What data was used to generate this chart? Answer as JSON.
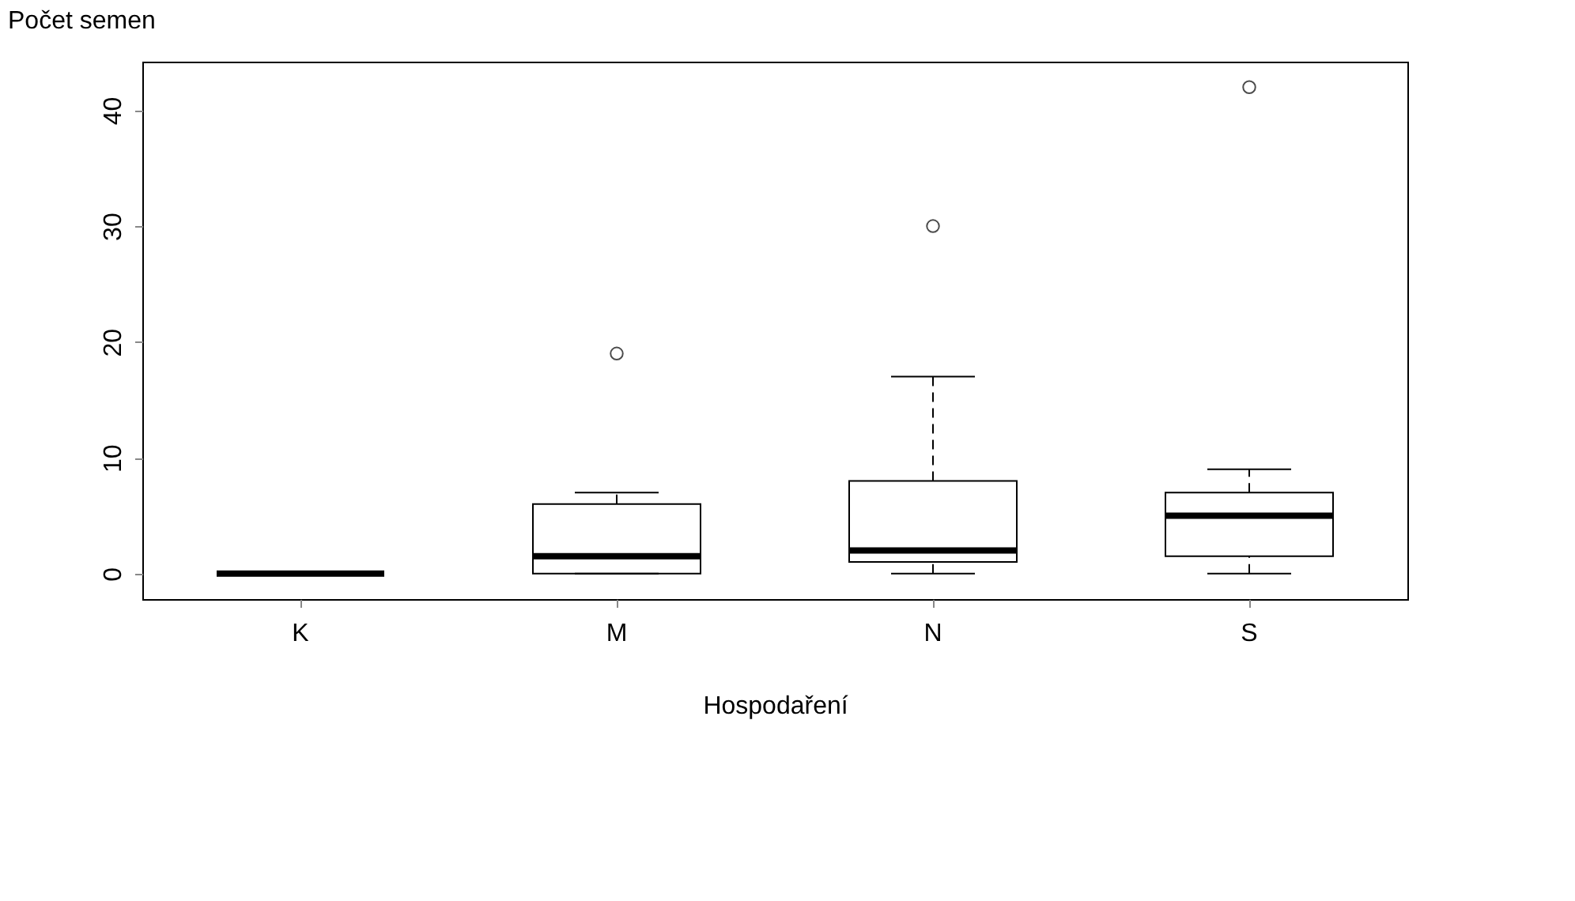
{
  "chart_data": {
    "type": "box",
    "ylabel": "Počet semen",
    "xlabel": "Hospodaření",
    "categories": [
      "K",
      "M",
      "N",
      "S"
    ],
    "boxes": [
      {
        "low": 0,
        "q1": 0,
        "median": 0,
        "q3": 0,
        "high": 0
      },
      {
        "low": 0,
        "q1": 0,
        "median": 1.5,
        "q3": 6,
        "high": 7,
        "outliers": [
          19
        ]
      },
      {
        "low": 0,
        "q1": 1,
        "median": 2,
        "q3": 8,
        "high": 17,
        "outliers": [
          30
        ]
      },
      {
        "low": 0,
        "q1": 1.5,
        "median": 5,
        "q3": 7,
        "high": 9,
        "outliers": [
          42
        ]
      }
    ],
    "ylim": [
      -2.2,
      44.2
    ],
    "yticks": [
      0,
      10,
      20,
      30,
      40
    ],
    "grid": false,
    "line_style": "dashed",
    "marker": "circle"
  }
}
